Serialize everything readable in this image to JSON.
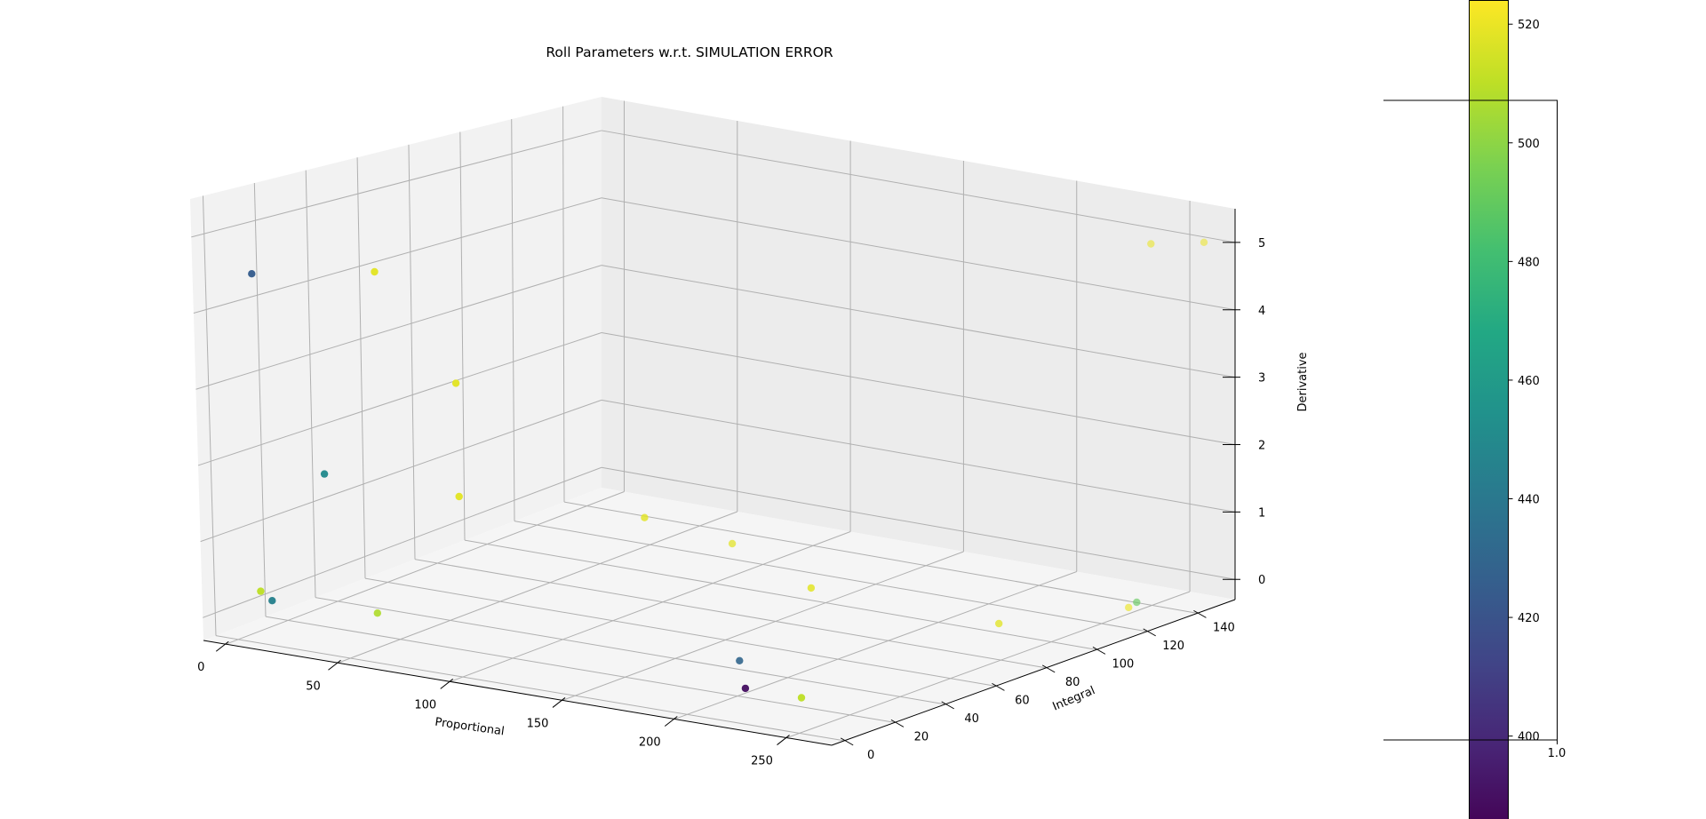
{
  "chart_data": {
    "type": "scatter",
    "projection": "3d",
    "title": "Roll Parameters w.r.t. SIMULATION ERROR",
    "xlabel": "Proportional",
    "ylabel": "Integral",
    "zlabel": "Derivative",
    "xlim": [
      -10,
      270
    ],
    "ylim": [
      -5,
      155
    ],
    "zlim": [
      -0.3,
      5.5
    ],
    "xticks": [
      0,
      50,
      100,
      150,
      200,
      250
    ],
    "yticks": [
      0,
      20,
      40,
      60,
      80,
      100,
      120,
      140
    ],
    "zticks": [
      0,
      1,
      2,
      3,
      4,
      5
    ],
    "grid": true,
    "colormap": "viridis",
    "colorbar": {
      "min": 384,
      "max": 524,
      "ticks": [
        400,
        420,
        440,
        460,
        480,
        500,
        520
      ]
    },
    "extra_axis": {
      "tick_label": "1.0"
    },
    "points": [
      {
        "x": 40,
        "y": 20,
        "z": 0,
        "c": 507
      },
      {
        "x": 5,
        "y": 5,
        "z": 0.3,
        "c": 510
      },
      {
        "x": 10,
        "y": 5,
        "z": 0.2,
        "c": 445
      },
      {
        "x": 5,
        "y": 5,
        "z": 4.5,
        "c": 425
      },
      {
        "x": 60,
        "y": 5,
        "z": 4.8,
        "c": 518
      },
      {
        "x": 35,
        "y": 5,
        "z": 2.0,
        "c": 450
      },
      {
        "x": 95,
        "y": 5,
        "z": 3.5,
        "c": 518
      },
      {
        "x": 95,
        "y": 5,
        "z": 2.0,
        "c": 518
      },
      {
        "x": 120,
        "y": 90,
        "z": 0.5,
        "c": 518
      },
      {
        "x": 115,
        "y": 60,
        "z": 1.2,
        "c": 518
      },
      {
        "x": 200,
        "y": 50,
        "z": 0.8,
        "c": 518
      },
      {
        "x": 190,
        "y": 30,
        "z": 0,
        "c": 430
      },
      {
        "x": 215,
        "y": 10,
        "z": 0,
        "c": 390
      },
      {
        "x": 240,
        "y": 10,
        "z": 0,
        "c": 510
      },
      {
        "x": 255,
        "y": 75,
        "z": 0.3,
        "c": 518
      },
      {
        "x": 262,
        "y": 120,
        "z": 0,
        "c": 520
      },
      {
        "x": 260,
        "y": 125,
        "z": 0,
        "c": 490
      },
      {
        "x": 250,
        "y": 140,
        "z": 5,
        "c": 520
      },
      {
        "x": 262,
        "y": 150,
        "z": 5,
        "c": 520
      }
    ]
  }
}
